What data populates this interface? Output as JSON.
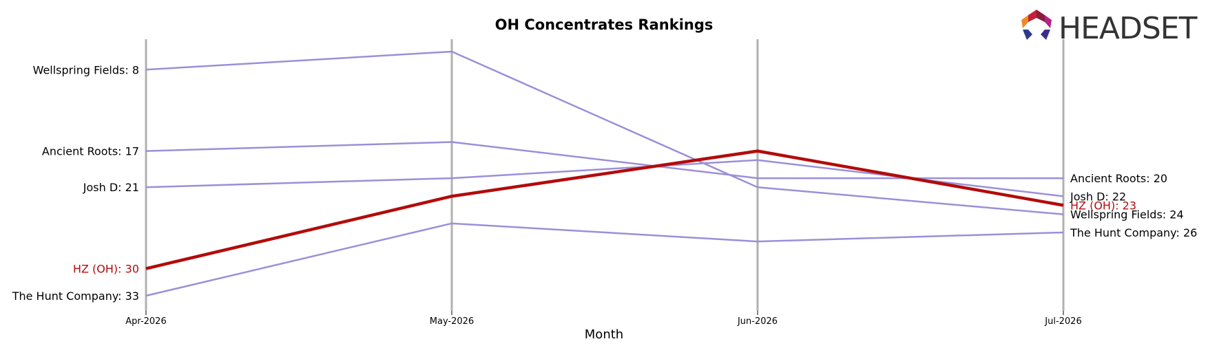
{
  "chart_data": {
    "type": "line",
    "title": "OH Concentrates Rankings",
    "xlabel": "Month",
    "ylabel": "",
    "x": [
      "Apr-2026",
      "May-2026",
      "Jun-2026",
      "Jul-2026"
    ],
    "y_inverted": true,
    "ylim": [
      35,
      6
    ],
    "grid": "vertical lines at each month",
    "highlight": "HZ (OH)",
    "series": [
      {
        "name": "Wellspring Fields",
        "values": [
          8,
          6,
          21,
          24
        ],
        "color": "#9b8fd8"
      },
      {
        "name": "Ancient Roots",
        "values": [
          17,
          16,
          20,
          20
        ],
        "color": "#9b8fd8"
      },
      {
        "name": "Josh D",
        "values": [
          21,
          20,
          18,
          22
        ],
        "color": "#9b8fd8"
      },
      {
        "name": "HZ (OH)",
        "values": [
          30,
          22,
          17,
          23
        ],
        "color": "#b30b0b"
      },
      {
        "name": "The Hunt Company",
        "values": [
          33,
          25,
          27,
          26
        ],
        "color": "#9b8fd8"
      }
    ],
    "left_labels": [
      {
        "series": "Wellspring Fields",
        "text": "Wellspring Fields: 8"
      },
      {
        "series": "Ancient Roots",
        "text": "Ancient Roots: 17"
      },
      {
        "series": "Josh D",
        "text": "Josh D: 21"
      },
      {
        "series": "HZ (OH)",
        "text": "HZ (OH): 30"
      },
      {
        "series": "The Hunt Company",
        "text": "The Hunt Company: 33"
      }
    ],
    "right_labels": [
      {
        "series": "Ancient Roots",
        "text": "Ancient Roots: 20"
      },
      {
        "series": "Josh D",
        "text": "Josh D: 22"
      },
      {
        "series": "HZ (OH)",
        "text": "HZ (OH): 23"
      },
      {
        "series": "Wellspring Fields",
        "text": "Wellspring Fields: 24"
      },
      {
        "series": "The Hunt Company",
        "text": "The Hunt Company: 26"
      }
    ]
  },
  "logo": {
    "text": "HEADSET"
  },
  "colors": {
    "highlight": "#b30b0b",
    "other": "#9b8fd8",
    "gridline": "#b0b0b0",
    "text": "#000000"
  }
}
